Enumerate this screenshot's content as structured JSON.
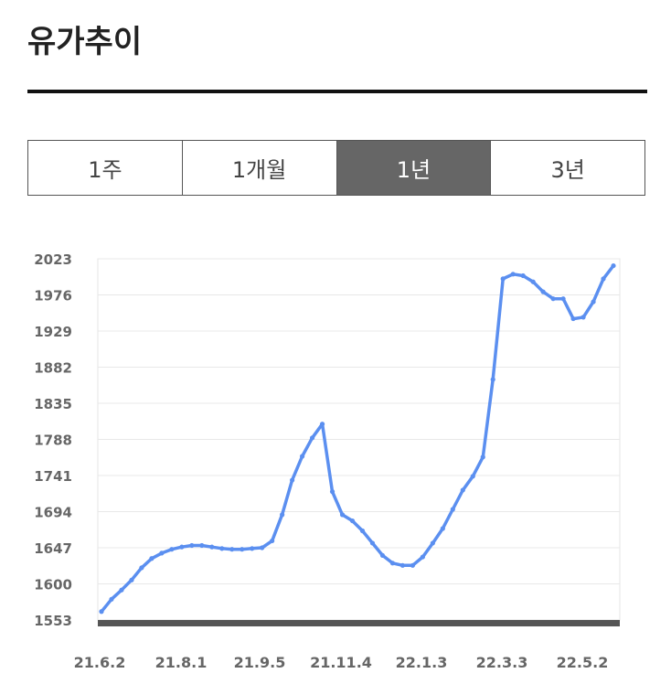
{
  "header": {
    "title": "유가추이"
  },
  "tabs": [
    {
      "label": "1주",
      "active": false
    },
    {
      "label": "1개월",
      "active": false
    },
    {
      "label": "1년",
      "active": true
    },
    {
      "label": "3년",
      "active": false
    }
  ],
  "colors": {
    "line": "#5b8ff0",
    "baseline": "#555555",
    "active_tab": "#666666"
  },
  "chart_data": {
    "type": "line",
    "title": "",
    "xlabel": "",
    "ylabel": "",
    "ylim": [
      1553,
      2023
    ],
    "y_ticks": [
      "2023",
      "1976",
      "1929",
      "1882",
      "1835",
      "1788",
      "1741",
      "1694",
      "1647",
      "1600",
      "1553"
    ],
    "x_tick_labels": [
      "21.6.2",
      "21.8.1",
      "21.9.5",
      "21.11.4",
      "22.1.3",
      "22.3.3",
      "22.5.2"
    ],
    "grid": true,
    "series": [
      {
        "values": [
          1564,
          1580,
          1592,
          1605,
          1621,
          1633,
          1640,
          1645,
          1648,
          1650,
          1650,
          1648,
          1646,
          1645,
          1645,
          1646,
          1647,
          1656,
          1690,
          1735,
          1766,
          1790,
          1808,
          1720,
          1690,
          1682,
          1669,
          1653,
          1637,
          1627,
          1624,
          1624,
          1635,
          1653,
          1672,
          1697,
          1722,
          1740,
          1765,
          1866,
          1997,
          2003,
          2001,
          1993,
          1980,
          1971,
          1971,
          1945,
          1947,
          1967,
          1997,
          2014
        ]
      }
    ]
  }
}
